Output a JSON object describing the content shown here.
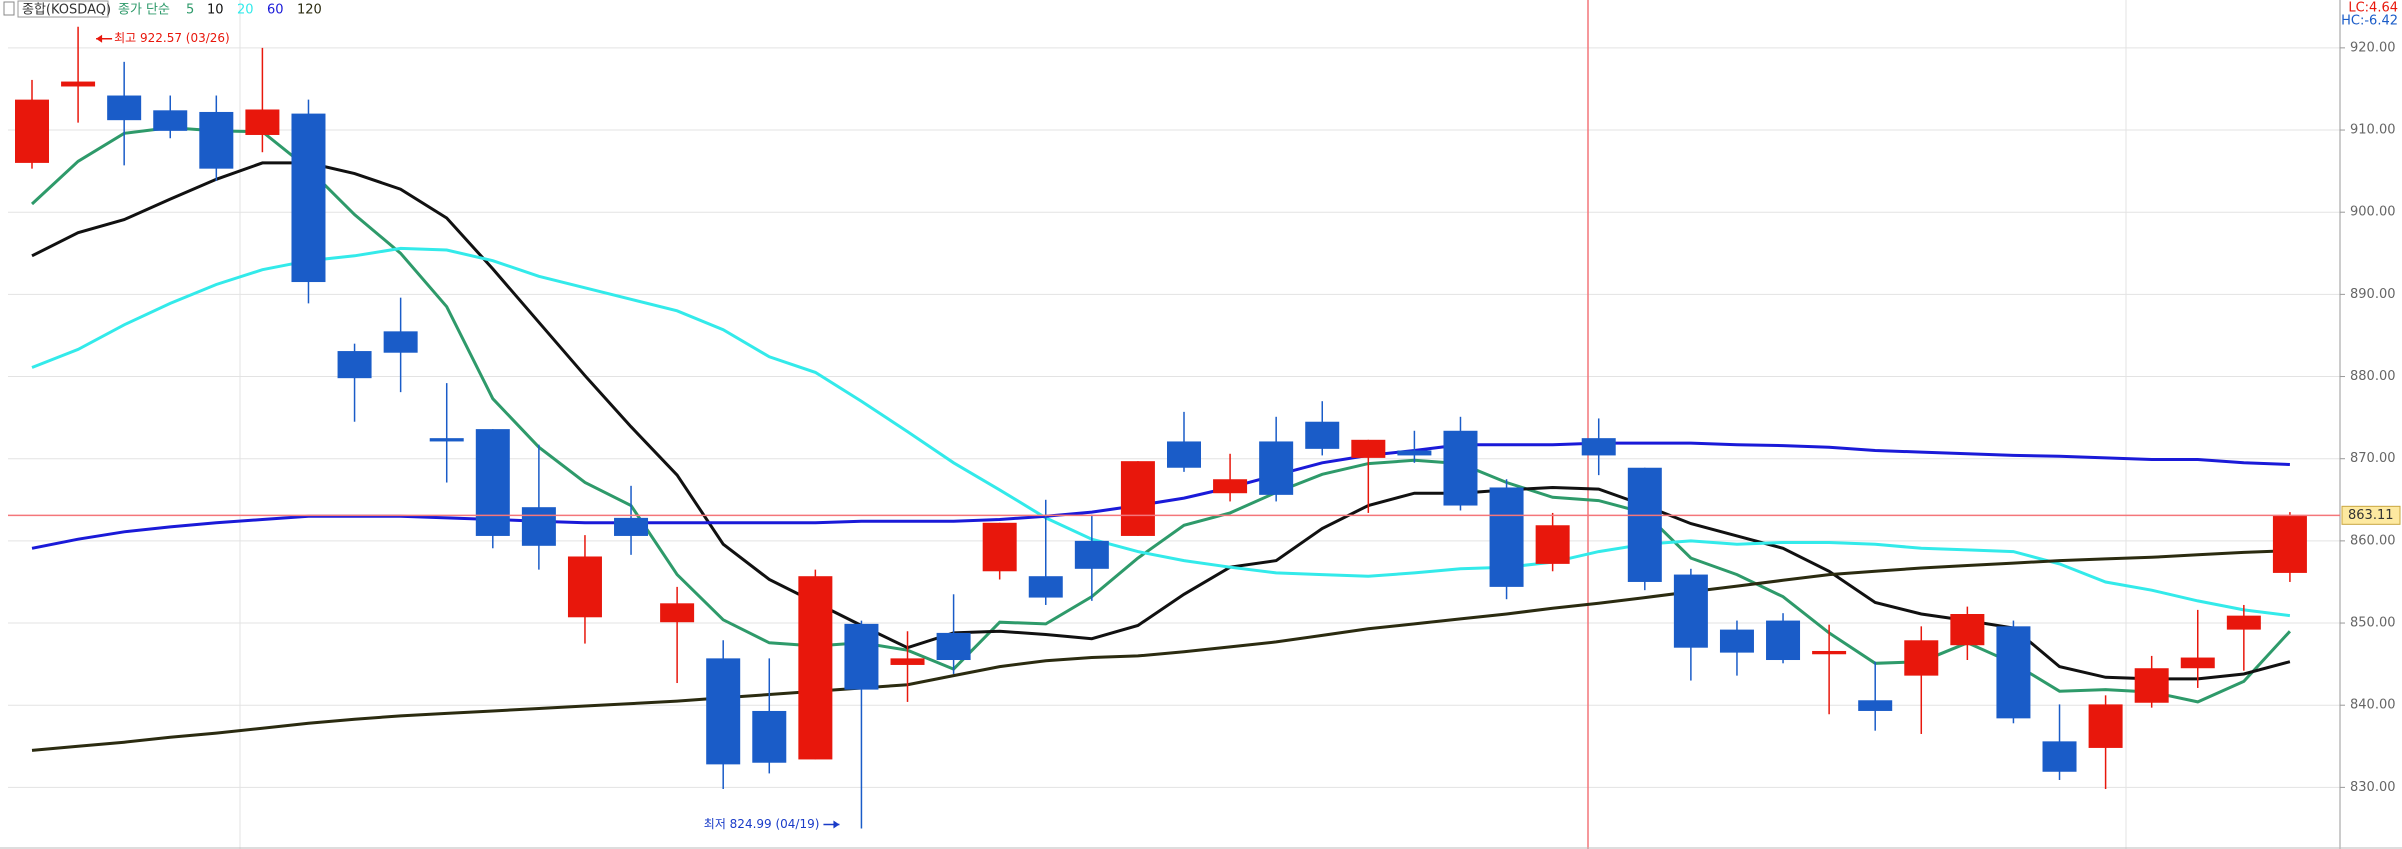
{
  "chart_data": {
    "type": "candlestick",
    "title": "종합(KOSDAQ)",
    "legend_title": "종가 단순",
    "up_color": "#e8170c",
    "down_color": "#1a5cc8",
    "open": [
      906.0,
      915.3,
      914.2,
      912.4,
      912.2,
      909.4,
      912.0,
      883.1,
      885.5,
      872.5,
      873.6,
      864.1,
      850.7,
      862.8,
      850.1,
      845.7,
      839.3,
      833.4,
      849.9,
      844.9,
      848.8,
      856.3,
      855.7,
      860.0,
      860.6,
      872.1,
      865.8,
      872.1,
      874.5,
      870.1,
      871.0,
      873.4,
      866.5,
      857.2,
      872.5,
      868.9,
      855.9,
      849.2,
      850.3,
      846.2,
      840.6,
      843.6,
      847.3,
      849.6,
      835.6,
      834.8,
      840.3,
      844.5,
      849.2,
      856.1
    ],
    "high": [
      916.1,
      922.57,
      918.3,
      914.2,
      914.2,
      920.0,
      913.7,
      884.0,
      889.6,
      879.2,
      873.6,
      871.7,
      860.7,
      866.7,
      854.4,
      847.9,
      845.7,
      856.5,
      850.3,
      849.0,
      853.5,
      862.2,
      865.0,
      863.2,
      869.7,
      875.7,
      870.6,
      875.1,
      877.0,
      872.3,
      873.4,
      875.1,
      867.5,
      863.4,
      874.9,
      868.9,
      856.6,
      850.3,
      851.2,
      849.8,
      845.3,
      849.6,
      852.0,
      850.3,
      840.1,
      841.2,
      846.0,
      851.6,
      852.2,
      863.5
    ],
    "low": [
      905.3,
      910.9,
      905.7,
      909.0,
      903.8,
      907.3,
      888.9,
      874.5,
      878.1,
      867.1,
      859.1,
      856.5,
      847.5,
      858.3,
      842.7,
      829.8,
      831.7,
      833.4,
      824.99,
      840.4,
      843.8,
      855.3,
      852.2,
      852.7,
      860.6,
      868.4,
      864.8,
      864.8,
      870.4,
      863.4,
      869.5,
      863.7,
      852.9,
      856.3,
      868.0,
      854.0,
      843.0,
      843.6,
      845.1,
      838.9,
      836.9,
      836.5,
      845.5,
      837.8,
      830.9,
      829.8,
      839.7,
      842.1,
      844.2,
      855.0
    ],
    "close": [
      913.7,
      915.9,
      911.2,
      909.9,
      905.3,
      912.5,
      891.5,
      879.8,
      882.9,
      872.1,
      860.6,
      859.4,
      858.1,
      860.6,
      852.4,
      832.8,
      833.0,
      855.7,
      841.9,
      845.7,
      845.5,
      862.2,
      853.1,
      856.6,
      869.7,
      868.9,
      867.5,
      865.6,
      871.2,
      872.3,
      870.4,
      864.3,
      854.4,
      861.9,
      870.4,
      855.0,
      847.0,
      846.4,
      845.5,
      846.6,
      839.3,
      847.9,
      851.1,
      838.4,
      831.9,
      840.1,
      844.5,
      845.8,
      850.9,
      863.11
    ],
    "series": [
      {
        "name": "5",
        "color": "#2e9a6a",
        "values": [
          901.0,
          906.2,
          909.6,
          910.3,
          909.9,
          909.8,
          905.3,
          899.7,
          895.0,
          888.5,
          877.3,
          871.4,
          867.1,
          864.3,
          855.9,
          850.4,
          847.6,
          847.2,
          847.6,
          846.7,
          844.4,
          850.1,
          849.9,
          853.2,
          857.9,
          861.9,
          863.4,
          865.9,
          868.1,
          869.4,
          869.8,
          869.4,
          867.1,
          865.3,
          864.9,
          863.4,
          857.9,
          855.9,
          853.2,
          848.8,
          845.1,
          845.3,
          847.6,
          845.1,
          841.7,
          841.9,
          841.6,
          840.4,
          842.9,
          849.0
        ]
      },
      {
        "name": "10",
        "color": "#111111",
        "values": [
          894.7,
          897.5,
          899.1,
          901.6,
          904.0,
          906.0,
          906.0,
          904.7,
          902.8,
          899.3,
          893.1,
          886.6,
          880.1,
          873.9,
          868.0,
          859.6,
          855.3,
          852.5,
          849.7,
          847.0,
          848.8,
          849.0,
          848.6,
          848.1,
          849.7,
          853.5,
          856.8,
          857.6,
          861.5,
          864.3,
          865.8,
          865.8,
          866.2,
          866.5,
          866.3,
          864.3,
          862.1,
          860.6,
          859.1,
          856.3,
          852.5,
          851.1,
          850.3,
          849.4,
          844.7,
          843.4,
          843.2,
          843.2,
          843.8,
          845.3
        ]
      },
      {
        "name": "20",
        "color": "#33eaea",
        "values": [
          881.1,
          883.3,
          886.3,
          888.9,
          891.2,
          893.0,
          894.1,
          894.7,
          895.6,
          895.4,
          894.1,
          892.2,
          890.8,
          889.4,
          888.0,
          885.7,
          882.4,
          880.5,
          877.0,
          873.3,
          869.5,
          866.2,
          862.8,
          860.2,
          858.7,
          857.6,
          856.8,
          856.1,
          855.9,
          855.7,
          856.1,
          856.6,
          856.8,
          857.4,
          858.7,
          859.6,
          860.0,
          859.6,
          859.8,
          859.8,
          859.6,
          859.1,
          858.9,
          858.7,
          857.2,
          855.0,
          854.0,
          852.7,
          851.6,
          850.9
        ]
      },
      {
        "name": "60",
        "color": "#1a1ad8",
        "values": [
          859.1,
          860.2,
          861.1,
          861.7,
          862.2,
          862.6,
          863.0,
          863.0,
          863.0,
          862.8,
          862.6,
          862.4,
          862.2,
          862.2,
          862.2,
          862.2,
          862.2,
          862.2,
          862.4,
          862.4,
          862.4,
          862.6,
          863.0,
          863.5,
          864.3,
          865.2,
          866.5,
          868.0,
          869.5,
          870.4,
          871.0,
          871.7,
          871.7,
          871.7,
          871.9,
          871.9,
          871.9,
          871.7,
          871.6,
          871.4,
          871.0,
          870.8,
          870.6,
          870.4,
          870.3,
          870.1,
          869.9,
          869.9,
          869.5,
          869.3
        ]
      },
      {
        "name": "120",
        "color": "#2b2b10",
        "values": [
          834.5,
          835.0,
          835.5,
          836.1,
          836.6,
          837.2,
          837.8,
          838.3,
          838.7,
          839.0,
          839.3,
          839.6,
          839.9,
          840.2,
          840.5,
          840.9,
          841.3,
          841.7,
          842.1,
          842.5,
          843.6,
          844.7,
          845.4,
          845.8,
          846.0,
          846.5,
          847.1,
          847.7,
          848.5,
          849.3,
          849.9,
          850.5,
          851.1,
          851.8,
          852.4,
          853.1,
          853.8,
          854.5,
          855.2,
          855.9,
          856.3,
          856.7,
          857.0,
          857.3,
          857.6,
          857.8,
          858.0,
          858.3,
          858.6,
          858.8
        ]
      }
    ],
    "ylim": [
      822.5,
      924
    ],
    "yticks": [
      {
        "value": 830,
        "label": "830.00"
      },
      {
        "value": 840,
        "label": "840.00"
      },
      {
        "value": 850,
        "label": "850.00"
      },
      {
        "value": 860,
        "label": "860.00"
      },
      {
        "value": 870,
        "label": "870.00"
      },
      {
        "value": 880,
        "label": "880.00"
      },
      {
        "value": 890,
        "label": "890.00"
      },
      {
        "value": 900,
        "label": "900.00"
      },
      {
        "value": 910,
        "label": "910.00"
      },
      {
        "value": 920,
        "label": "920.00"
      }
    ],
    "grid": true,
    "high_label": "최고 922.57 (03/26)",
    "low_label": "최저 824.99 (04/19)",
    "last_price": {
      "value": 863.11,
      "label": "863.11"
    },
    "lc_label": "LC:4.64",
    "hc_label": "HC:-6.42"
  }
}
